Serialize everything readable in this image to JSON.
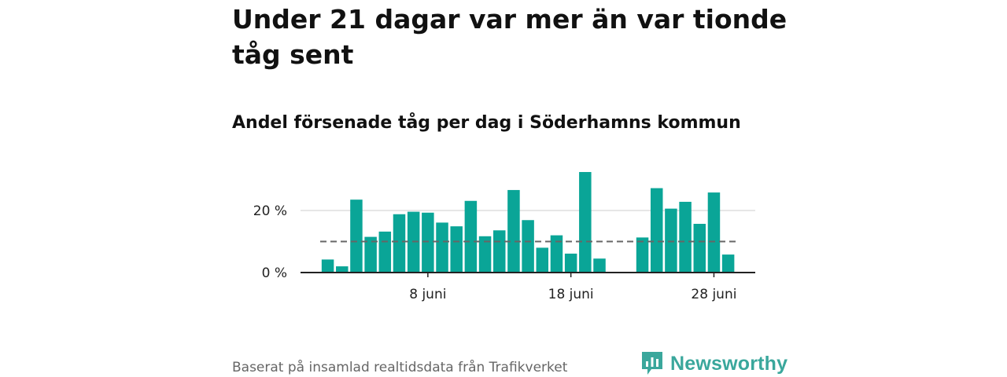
{
  "header": {
    "title": "Under 21 dagar var mer än var tionde tåg sent",
    "subtitle": "Andel försenade tåg per dag i Söderhamns kommun"
  },
  "footer": {
    "source": "Baserat på insamlad realtidsdata från Trafikverket",
    "brand": "Newsworthy"
  },
  "colors": {
    "bar": "#0aa597",
    "reference_line": "#666666",
    "grid": "#dddddd",
    "axis": "#222222",
    "brand": "#3aa79c"
  },
  "icons": {
    "brand_logo": "bar-chart-speech-bubble-icon"
  },
  "chart_data": {
    "type": "bar",
    "title": "Andel försenade tåg per dag i Söderhamns kommun",
    "xlabel": "",
    "ylabel": "",
    "x": [
      1,
      2,
      3,
      4,
      5,
      6,
      7,
      8,
      9,
      10,
      11,
      12,
      13,
      14,
      15,
      16,
      17,
      18,
      19,
      20,
      21,
      22,
      23,
      24,
      25,
      26,
      27,
      28,
      29
    ],
    "values": [
      4.2,
      2.0,
      23.5,
      11.5,
      13.2,
      18.8,
      19.6,
      19.3,
      16.1,
      14.9,
      23.1,
      11.7,
      13.6,
      26.6,
      16.9,
      8.0,
      12.0,
      6.1,
      32.4,
      4.5,
      null,
      null,
      11.3,
      27.2,
      20.6,
      22.8,
      15.7,
      25.8,
      5.8
    ],
    "reference_line": {
      "value": 10,
      "style": "dashed"
    },
    "ylim": [
      0,
      33
    ],
    "yticks": [
      {
        "value": 0,
        "label": "0 %"
      },
      {
        "value": 20,
        "label": "20 %"
      }
    ],
    "xticks": [
      {
        "value": 8,
        "label": "8 juni"
      },
      {
        "value": 18,
        "label": "18 juni"
      },
      {
        "value": 28,
        "label": "28 juni"
      }
    ],
    "grid": true,
    "legend": "none"
  }
}
